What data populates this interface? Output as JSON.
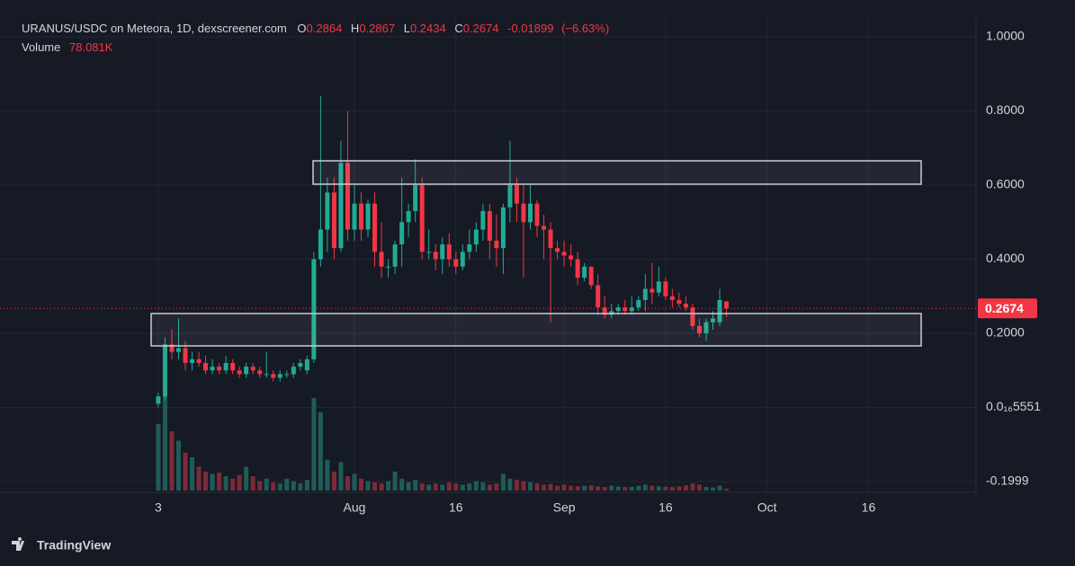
{
  "chart_data": {
    "type": "candlestick",
    "title": "URANUS/USDC on Meteora, 1D, dexscreener.com",
    "ohlc_labels": [
      "O",
      "H",
      "L",
      "C"
    ],
    "ohlc": [
      0.2864,
      0.2867,
      0.2434,
      0.2674
    ],
    "change": -0.01899,
    "change_pct": {
      "value": -6.63,
      "label": "(−6.63%)"
    },
    "volume_label": "Volume",
    "volume_value": {
      "value": 78081,
      "label": "78.081K"
    },
    "up_color": "#22ab94",
    "down_color": "#f23645",
    "volume_up_color": "#1f5c58",
    "volume_down_color": "#7a2b38",
    "grid": true,
    "xlim": [
      -23.4,
      120.9
    ],
    "ylim": [
      -0.229,
      1.051
    ],
    "volume_ylim": [
      0,
      20000000
    ],
    "xticks": [
      {
        "value": 0,
        "label": "3"
      },
      {
        "value": 29,
        "label": "Aug"
      },
      {
        "value": 44,
        "label": "16"
      },
      {
        "value": 60,
        "label": "Sep"
      },
      {
        "value": 75,
        "label": "16"
      },
      {
        "value": 90,
        "label": "Oct"
      },
      {
        "value": 105,
        "label": "16"
      }
    ],
    "yticks": [
      {
        "value": 1,
        "label": "1.0000"
      },
      {
        "value": 0.8,
        "label": "0.8000"
      },
      {
        "value": 0.6,
        "label": "0.6000"
      },
      {
        "value": 0.4,
        "label": "0.4000"
      },
      {
        "value": 0.2,
        "label": "0.2000"
      },
      {
        "value": 5.551e-17,
        "label": "0.0₁₆5551"
      },
      -0.1999
    ],
    "candles": {
      "x": [
        0,
        1,
        2,
        3,
        4,
        5,
        6,
        7,
        8,
        9,
        10,
        11,
        12,
        13,
        14,
        15,
        16,
        17,
        18,
        19,
        20,
        21,
        22,
        23,
        24,
        25,
        26,
        27,
        28,
        29,
        30,
        31,
        32,
        33,
        34,
        35,
        36,
        37,
        38,
        39,
        40,
        41,
        42,
        43,
        44,
        45,
        46,
        47,
        48,
        49,
        50,
        51,
        52,
        53,
        54,
        55,
        56,
        57,
        58,
        59,
        60,
        61,
        62,
        63,
        64,
        65,
        66,
        67,
        68,
        69,
        70,
        71,
        72,
        73,
        74,
        75,
        76,
        77,
        78,
        79,
        80,
        81,
        82,
        83,
        84
      ],
      "open": [
        0.01,
        0.03,
        0.17,
        0.15,
        0.16,
        0.12,
        0.13,
        0.12,
        0.1,
        0.11,
        0.1,
        0.12,
        0.1,
        0.09,
        0.11,
        0.1,
        0.09,
        0.09,
        0.08,
        0.09,
        0.09,
        0.11,
        0.1,
        0.13,
        0.4,
        0.48,
        0.58,
        0.43,
        0.66,
        0.48,
        0.55,
        0.48,
        0.55,
        0.42,
        0.38,
        0.38,
        0.44,
        0.5,
        0.53,
        0.6,
        0.42,
        0.42,
        0.4,
        0.44,
        0.4,
        0.38,
        0.42,
        0.44,
        0.48,
        0.53,
        0.45,
        0.43,
        0.54,
        0.6,
        0.55,
        0.5,
        0.55,
        0.49,
        0.48,
        0.43,
        0.42,
        0.41,
        0.4,
        0.35,
        0.38,
        0.33,
        0.27,
        0.25,
        0.26,
        0.27,
        0.26,
        0.27,
        0.29,
        0.32,
        0.31,
        0.34,
        0.3,
        0.29,
        0.28,
        0.27,
        0.22,
        0.2,
        0.23,
        0.23,
        0.2864
      ],
      "high": [
        0.04,
        0.19,
        0.21,
        0.24,
        0.18,
        0.15,
        0.15,
        0.14,
        0.13,
        0.12,
        0.14,
        0.13,
        0.11,
        0.12,
        0.12,
        0.11,
        0.15,
        0.1,
        0.1,
        0.1,
        0.12,
        0.13,
        0.14,
        0.42,
        0.84,
        0.62,
        0.62,
        0.72,
        0.8,
        0.6,
        0.58,
        0.56,
        0.58,
        0.5,
        0.4,
        0.45,
        0.62,
        0.55,
        0.67,
        0.62,
        0.48,
        0.44,
        0.46,
        0.47,
        0.42,
        0.44,
        0.48,
        0.5,
        0.55,
        0.55,
        0.52,
        0.55,
        0.72,
        0.62,
        0.6,
        0.6,
        0.56,
        0.52,
        0.5,
        0.45,
        0.45,
        0.44,
        0.42,
        0.39,
        0.38,
        0.36,
        0.3,
        0.28,
        0.28,
        0.29,
        0.3,
        0.3,
        0.36,
        0.39,
        0.38,
        0.35,
        0.32,
        0.31,
        0.3,
        0.28,
        0.24,
        0.24,
        0.26,
        0.32,
        0.2867
      ],
      "low": [
        0.0,
        0.02,
        0.13,
        0.13,
        0.1,
        0.1,
        0.11,
        0.09,
        0.09,
        0.09,
        0.09,
        0.09,
        0.08,
        0.08,
        0.09,
        0.08,
        0.08,
        0.07,
        0.07,
        0.08,
        0.08,
        0.1,
        0.09,
        0.12,
        0.38,
        0.42,
        0.4,
        0.42,
        0.45,
        0.45,
        0.45,
        0.46,
        0.38,
        0.35,
        0.35,
        0.36,
        0.38,
        0.46,
        0.5,
        0.4,
        0.4,
        0.37,
        0.36,
        0.38,
        0.36,
        0.37,
        0.4,
        0.42,
        0.45,
        0.4,
        0.38,
        0.36,
        0.5,
        0.5,
        0.35,
        0.48,
        0.46,
        0.4,
        0.23,
        0.4,
        0.38,
        0.38,
        0.33,
        0.34,
        0.32,
        0.25,
        0.24,
        0.24,
        0.25,
        0.25,
        0.25,
        0.26,
        0.26,
        0.28,
        0.3,
        0.29,
        0.27,
        0.27,
        0.26,
        0.21,
        0.19,
        0.18,
        0.21,
        0.22,
        0.2434
      ],
      "close": [
        0.03,
        0.17,
        0.15,
        0.16,
        0.12,
        0.13,
        0.12,
        0.1,
        0.11,
        0.1,
        0.12,
        0.1,
        0.09,
        0.11,
        0.1,
        0.09,
        0.09,
        0.08,
        0.09,
        0.09,
        0.11,
        0.12,
        0.13,
        0.4,
        0.48,
        0.58,
        0.43,
        0.66,
        0.48,
        0.55,
        0.48,
        0.55,
        0.42,
        0.38,
        0.38,
        0.44,
        0.5,
        0.53,
        0.6,
        0.42,
        0.42,
        0.4,
        0.44,
        0.4,
        0.38,
        0.42,
        0.44,
        0.48,
        0.53,
        0.45,
        0.43,
        0.54,
        0.6,
        0.55,
        0.5,
        0.55,
        0.49,
        0.48,
        0.43,
        0.42,
        0.41,
        0.4,
        0.35,
        0.38,
        0.33,
        0.27,
        0.25,
        0.26,
        0.27,
        0.26,
        0.27,
        0.29,
        0.32,
        0.31,
        0.34,
        0.3,
        0.29,
        0.28,
        0.27,
        0.22,
        0.2,
        0.23,
        0.24,
        0.29,
        0.2674
      ],
      "volume": [
        2800000,
        4000000,
        2500000,
        2100000,
        1600000,
        1400000,
        1000000,
        800000,
        700000,
        750000,
        600000,
        500000,
        650000,
        1000000,
        600000,
        400000,
        500000,
        350000,
        300000,
        500000,
        400000,
        300000,
        450000,
        3900000,
        3300000,
        1300000,
        800000,
        1200000,
        600000,
        700000,
        500000,
        400000,
        350000,
        300000,
        400000,
        800000,
        500000,
        350000,
        450000,
        300000,
        250000,
        300000,
        250000,
        350000,
        300000,
        250000,
        300000,
        400000,
        350000,
        250000,
        300000,
        700000,
        500000,
        450000,
        400000,
        350000,
        300000,
        250000,
        280000,
        200000,
        250000,
        200000,
        180000,
        200000,
        220000,
        180000,
        150000,
        200000,
        170000,
        150000,
        160000,
        200000,
        250000,
        200000,
        180000,
        160000,
        150000,
        180000,
        220000,
        300000,
        250000,
        150000,
        130000,
        200000,
        78081
      ]
    }
  },
  "branding": "TradingView"
}
